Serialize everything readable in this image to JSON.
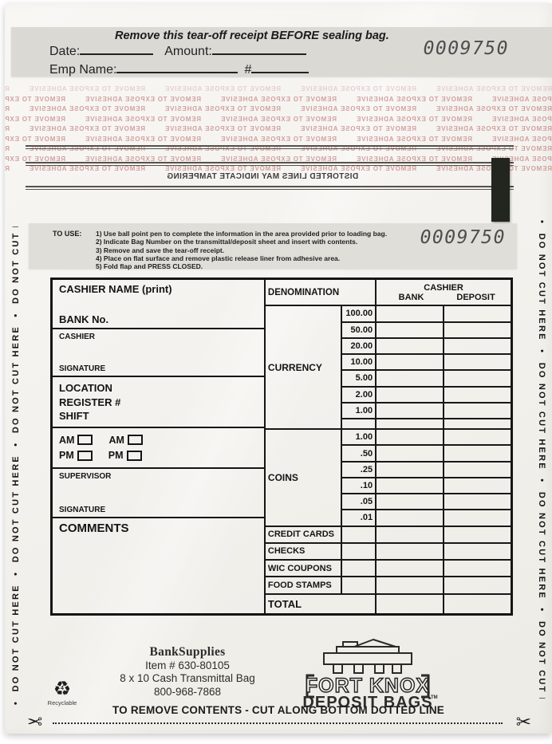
{
  "serial": "0009750",
  "receipt": {
    "notice": "Remove this tear-off receipt BEFORE sealing bag.",
    "date_label": "Date:",
    "amount_label": "Amount:",
    "emp_name_label": "Emp Name:",
    "emp_number_label": "#"
  },
  "security": {
    "adhesive_text": "REMOVE TO EXPOSE ADHESIVE",
    "tamper_text": "DISTORTED LINES MAY INDICATE TAMPERING",
    "red_color": "#ba6c6c"
  },
  "instructions": {
    "label": "TO USE:",
    "steps": [
      "1) Use ball point pen to complete the information in the area provided prior to loading bag.",
      "2) Indicate Bag Number on the transmittal/deposit sheet and insert with contents.",
      "3) Remove and save the tear-off receipt.",
      "4) Place on flat surface and remove plastic release liner from adhesive area.",
      "5) Fold flap and PRESS CLOSED."
    ]
  },
  "margin_text": "DO NOT CUT HERE",
  "form": {
    "cashier_name_label": "CASHIER NAME (print)",
    "bank_no_label": "BANK No.",
    "cashier_label": "CASHIER",
    "signature_label": "SIGNATURE",
    "location_label": "LOCATION",
    "register_label": "REGISTER #",
    "shift_label": "SHIFT",
    "am_label": "AM",
    "pm_label": "PM",
    "supervisor_label": "SUPERVISOR",
    "comments_label": "COMMENTS"
  },
  "table": {
    "denomination_header": "DENOMINATION",
    "cashier_header": "CASHIER",
    "bank_header": "BANK",
    "deposit_header": "DEPOSIT",
    "sections": [
      {
        "label": "CURRENCY",
        "rows": [
          "100.00",
          "50.00",
          "20.00",
          "10.00",
          "5.00",
          "2.00",
          "1.00",
          ""
        ]
      },
      {
        "label": "COINS",
        "rows": [
          "1.00",
          ".50",
          ".25",
          ".10",
          ".05",
          ".01"
        ]
      }
    ],
    "special_rows": [
      "CREDIT CARDS",
      "CHECKS",
      "WIC COUPONS",
      "FOOD STAMPS"
    ],
    "total_label": "TOTAL"
  },
  "footer": {
    "brand": "BankSupplies",
    "item_line": "Item # 630-80105",
    "product_line": "8 x 10 Cash Transmittal Bag",
    "phone_line": "800-968-7868",
    "recyclable_label": "Recyclable",
    "recycle_number": "4",
    "logo_top": "FORT KNOX",
    "logo_bottom": "DEPOSIT BAGS",
    "trademark": "TM",
    "cut_instruction": "TO REMOVE CONTENTS - CUT ALONG BOTTOM DOTTED LINE"
  },
  "colors": {
    "bag": "#f4f2ee",
    "strip": "#dbd9d4",
    "ink": "#1a1a1a",
    "serial": "#4d4d4d",
    "security_red": "#ba6c6c"
  }
}
